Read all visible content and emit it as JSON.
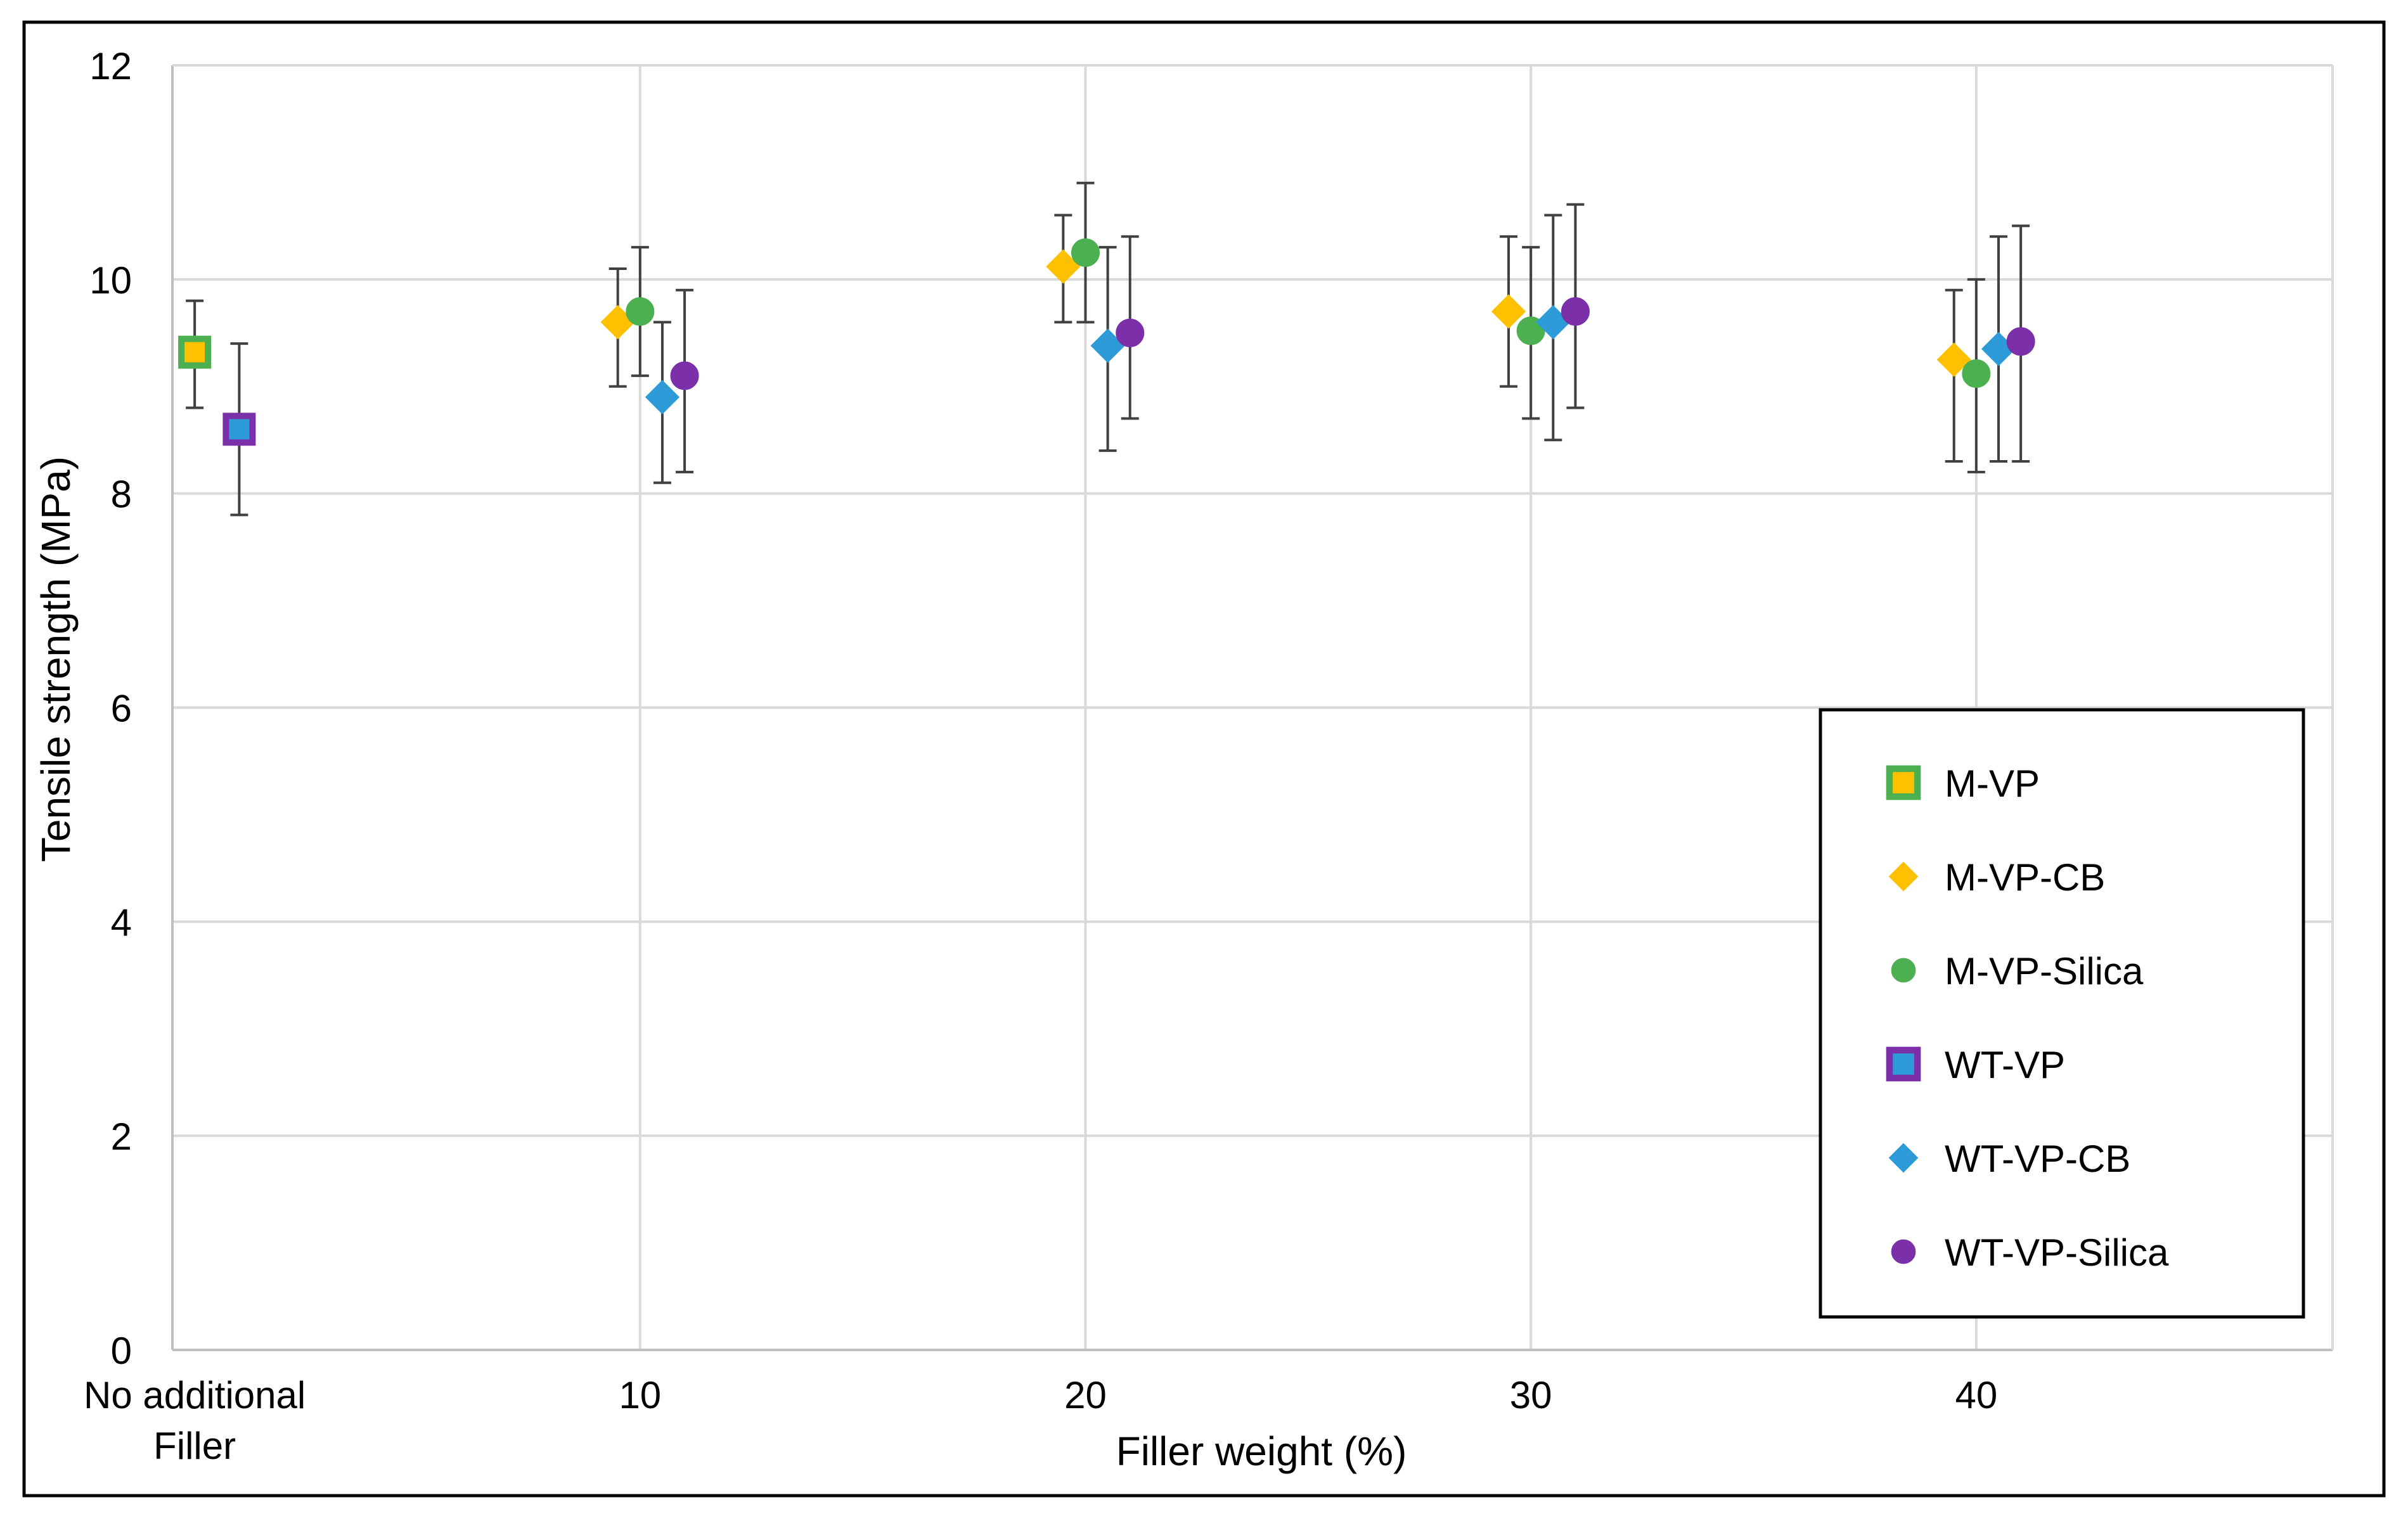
{
  "chart_data": {
    "type": "scatter",
    "xlabel": "Filler weight (%)",
    "ylabel": "Tensile strength (MPa)",
    "xlim": [
      -0.5,
      48
    ],
    "ylim": [
      0,
      12
    ],
    "x_ticks": [
      {
        "value": 0,
        "lines": [
          "No additional",
          "Filler"
        ]
      },
      {
        "value": 10,
        "lines": [
          "10"
        ]
      },
      {
        "value": 20,
        "lines": [
          "20"
        ]
      },
      {
        "value": 30,
        "lines": [
          "30"
        ]
      },
      {
        "value": 40,
        "lines": [
          "40"
        ]
      }
    ],
    "y_ticks": [
      "0",
      "2",
      "4",
      "6",
      "8",
      "10",
      "12"
    ],
    "grid": true,
    "legend_position": "bottom-right",
    "series": [
      {
        "name": "M-VP",
        "marker": "square",
        "fill": "#FFC000",
        "edge": "#4CAF50",
        "points": [
          {
            "x": 0,
            "y": 9.32,
            "low": 8.8,
            "high": 9.8
          }
        ]
      },
      {
        "name": "M-VP-CB",
        "marker": "diamond",
        "fill": "#FFC000",
        "edge": "#FFC000",
        "points": [
          {
            "x": 9.5,
            "y": 9.6,
            "low": 9.0,
            "high": 10.1
          },
          {
            "x": 19.5,
            "y": 10.12,
            "low": 9.6,
            "high": 10.6
          },
          {
            "x": 29.5,
            "y": 9.7,
            "low": 9.0,
            "high": 10.4
          },
          {
            "x": 39.5,
            "y": 9.25,
            "low": 8.3,
            "high": 9.9
          }
        ]
      },
      {
        "name": "M-VP-Silica",
        "marker": "circle",
        "fill": "#4CAF50",
        "edge": "#4CAF50",
        "points": [
          {
            "x": 10,
            "y": 9.7,
            "low": 9.1,
            "high": 10.3
          },
          {
            "x": 20,
            "y": 10.25,
            "low": 9.6,
            "high": 10.9
          },
          {
            "x": 30,
            "y": 9.52,
            "low": 8.7,
            "high": 10.3
          },
          {
            "x": 40,
            "y": 9.12,
            "low": 8.2,
            "high": 10.0
          }
        ]
      },
      {
        "name": "WT-VP",
        "marker": "square",
        "fill": "#2E9BD9",
        "edge": "#7B2FA8",
        "points": [
          {
            "x": 1,
            "y": 8.6,
            "low": 7.8,
            "high": 9.4
          }
        ]
      },
      {
        "name": "WT-VP-CB",
        "marker": "diamond",
        "fill": "#2E9BD9",
        "edge": "#2E9BD9",
        "points": [
          {
            "x": 10.5,
            "y": 8.9,
            "low": 8.1,
            "high": 9.6
          },
          {
            "x": 20.5,
            "y": 9.38,
            "low": 8.4,
            "high": 10.3
          },
          {
            "x": 30.5,
            "y": 9.6,
            "low": 8.5,
            "high": 10.6
          },
          {
            "x": 40.5,
            "y": 9.35,
            "low": 8.3,
            "high": 10.4
          }
        ]
      },
      {
        "name": "WT-VP-Silica",
        "marker": "circle",
        "fill": "#7B2FA8",
        "edge": "#7B2FA8",
        "points": [
          {
            "x": 11,
            "y": 9.1,
            "low": 8.2,
            "high": 9.9
          },
          {
            "x": 21,
            "y": 9.5,
            "low": 8.7,
            "high": 10.4
          },
          {
            "x": 31,
            "y": 9.7,
            "low": 8.8,
            "high": 10.7
          },
          {
            "x": 41,
            "y": 9.42,
            "low": 8.3,
            "high": 10.5
          }
        ]
      }
    ]
  }
}
